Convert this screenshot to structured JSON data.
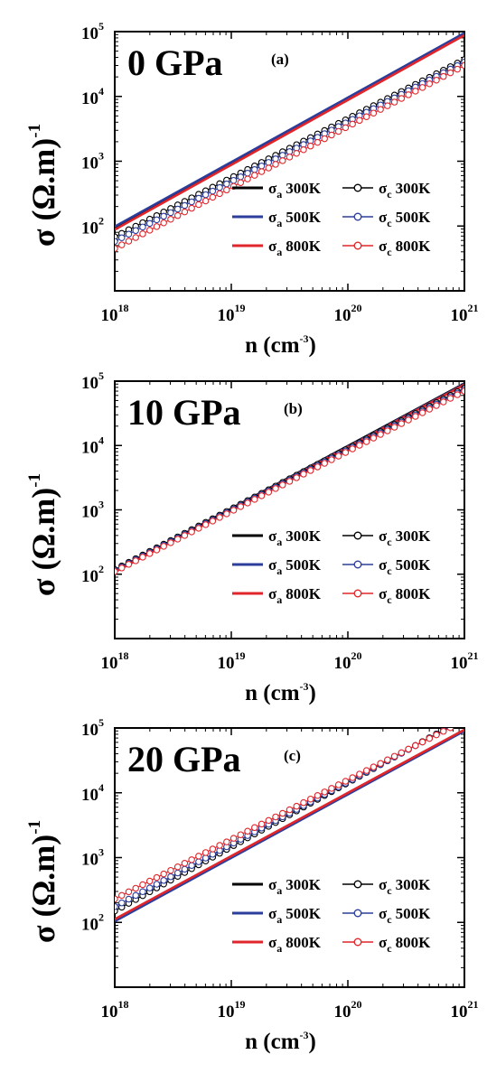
{
  "chart_data": [
    {
      "type": "line",
      "panel_label": "0 GPa",
      "panel_tag": "(a)",
      "xlabel": "n (cm-3)",
      "ylabel": "σ (Ω.m)-1",
      "xscale": "log",
      "yscale": "log",
      "xlim": [
        1e+18,
        1e+21
      ],
      "ylim": [
        10,
        100000
      ],
      "x_ticks": [
        {
          "base": "10",
          "exp": "18"
        },
        {
          "base": "10",
          "exp": "19"
        },
        {
          "base": "10",
          "exp": "20"
        },
        {
          "base": "10",
          "exp": "21"
        }
      ],
      "y_ticks": [
        {
          "base": "10",
          "exp": "2"
        },
        {
          "base": "10",
          "exp": "3"
        },
        {
          "base": "10",
          "exp": "4"
        },
        {
          "base": "10",
          "exp": "5"
        }
      ],
      "legend_position": "lower-right",
      "series": [
        {
          "name": "σa 300K",
          "sym": "σ",
          "sub": "a",
          "temp": "300K",
          "color": "#000000",
          "marker": "none",
          "x": [
            1e+18,
            1e+21
          ],
          "y": [
            92,
            92000
          ]
        },
        {
          "name": "σa 500K",
          "sym": "σ",
          "sub": "a",
          "temp": "500K",
          "color": "#2c3e9c",
          "marker": "none",
          "x": [
            1e+18,
            1e+21
          ],
          "y": [
            98,
            95000
          ]
        },
        {
          "name": "σa 800K",
          "sym": "σ",
          "sub": "a",
          "temp": "800K",
          "color": "#e0262b",
          "marker": "none",
          "x": [
            1e+18,
            1e+21
          ],
          "y": [
            88,
            88000
          ]
        },
        {
          "name": "σc 300K",
          "sym": "σ",
          "sub": "c",
          "temp": "300K",
          "color": "#000000",
          "marker": "circle",
          "x": [
            1e+18,
            1e+21
          ],
          "y": [
            68,
            37000
          ]
        },
        {
          "name": "σc 500K",
          "sym": "σ",
          "sub": "c",
          "temp": "500K",
          "color": "#2c3e9c",
          "marker": "circle",
          "x": [
            1e+18,
            1e+21
          ],
          "y": [
            58,
            34000
          ]
        },
        {
          "name": "σc 800K",
          "sym": "σ",
          "sub": "c",
          "temp": "800K",
          "color": "#e0262b",
          "marker": "circle",
          "x": [
            1e+18,
            1e+21
          ],
          "y": [
            45,
            30000
          ]
        }
      ]
    },
    {
      "type": "line",
      "panel_label": "10 GPa",
      "panel_tag": "(b)",
      "xlabel": "n (cm-3)",
      "ylabel": "σ (Ω.m)-1",
      "xscale": "log",
      "yscale": "log",
      "xlim": [
        1e+18,
        1e+21
      ],
      "ylim": [
        10,
        100000
      ],
      "x_ticks": [
        {
          "base": "10",
          "exp": "18"
        },
        {
          "base": "10",
          "exp": "19"
        },
        {
          "base": "10",
          "exp": "20"
        },
        {
          "base": "10",
          "exp": "21"
        }
      ],
      "y_ticks": [
        {
          "base": "10",
          "exp": "2"
        },
        {
          "base": "10",
          "exp": "3"
        },
        {
          "base": "10",
          "exp": "4"
        },
        {
          "base": "10",
          "exp": "5"
        }
      ],
      "legend_position": "lower-right",
      "series": [
        {
          "name": "σa 300K",
          "sym": "σ",
          "sub": "a",
          "temp": "300K",
          "color": "#000000",
          "marker": "none",
          "x": [
            1e+18,
            1e+21
          ],
          "y": [
            112,
            92000
          ]
        },
        {
          "name": "σa 500K",
          "sym": "σ",
          "sub": "a",
          "temp": "500K",
          "color": "#2c3e9c",
          "marker": "none",
          "x": [
            1e+18,
            1e+21
          ],
          "y": [
            110,
            90000
          ]
        },
        {
          "name": "σa 800K",
          "sym": "σ",
          "sub": "a",
          "temp": "800K",
          "color": "#e0262b",
          "marker": "none",
          "x": [
            1e+18,
            1e+21
          ],
          "y": [
            108,
            88000
          ]
        },
        {
          "name": "σc 300K",
          "sym": "σ",
          "sub": "c",
          "temp": "300K",
          "color": "#000000",
          "marker": "circle",
          "x": [
            1e+18,
            1e+21
          ],
          "y": [
            118,
            78000
          ]
        },
        {
          "name": "σc 500K",
          "sym": "σ",
          "sub": "c",
          "temp": "500K",
          "color": "#2c3e9c",
          "marker": "circle",
          "x": [
            1e+18,
            1e+21
          ],
          "y": [
            114,
            74000
          ]
        },
        {
          "name": "σc 800K",
          "sym": "σ",
          "sub": "c",
          "temp": "800K",
          "color": "#e0262b",
          "marker": "circle",
          "x": [
            1e+18,
            1e+21
          ],
          "y": [
            110,
            70000
          ]
        }
      ]
    },
    {
      "type": "line",
      "panel_label": "20 GPa",
      "panel_tag": "(c)",
      "xlabel": "n (cm-3)",
      "ylabel": "σ (Ω.m)-1",
      "xscale": "log",
      "yscale": "log",
      "xlim": [
        1e+18,
        1e+21
      ],
      "ylim": [
        10,
        100000
      ],
      "x_ticks": [
        {
          "base": "10",
          "exp": "18"
        },
        {
          "base": "10",
          "exp": "19"
        },
        {
          "base": "10",
          "exp": "20"
        },
        {
          "base": "10",
          "exp": "21"
        }
      ],
      "y_ticks": [
        {
          "base": "10",
          "exp": "2"
        },
        {
          "base": "10",
          "exp": "3"
        },
        {
          "base": "10",
          "exp": "4"
        },
        {
          "base": "10",
          "exp": "5"
        }
      ],
      "legend_position": "lower-right",
      "series": [
        {
          "name": "σa 300K",
          "sym": "σ",
          "sub": "a",
          "temp": "300K",
          "color": "#000000",
          "marker": "none",
          "x": [
            1e+18,
            1e+21
          ],
          "y": [
            108,
            92000
          ]
        },
        {
          "name": "σa 500K",
          "sym": "σ",
          "sub": "a",
          "temp": "500K",
          "color": "#2c3e9c",
          "marker": "none",
          "x": [
            1e+18,
            1e+21
          ],
          "y": [
            104,
            90000
          ]
        },
        {
          "name": "σa 800K",
          "sym": "σ",
          "sub": "a",
          "temp": "800K",
          "color": "#e0262b",
          "marker": "none",
          "x": [
            1e+18,
            1e+21
          ],
          "y": [
            112,
            94000
          ]
        },
        {
          "name": "σc 300K",
          "sym": "σ",
          "sub": "c",
          "temp": "300K",
          "color": "#000000",
          "marker": "circle",
          "x": [
            1e+18,
            1e+21
          ],
          "y": [
            150,
            140000
          ]
        },
        {
          "name": "σc 500K",
          "sym": "σ",
          "sub": "c",
          "temp": "500K",
          "color": "#2c3e9c",
          "marker": "circle",
          "x": [
            1e+18,
            1e+21
          ],
          "y": [
            175,
            135000
          ]
        },
        {
          "name": "σc 800K",
          "sym": "σ",
          "sub": "c",
          "temp": "800K",
          "color": "#e0262b",
          "marker": "circle",
          "x": [
            1e+18,
            1e+21
          ],
          "y": [
            230,
            130000
          ]
        }
      ]
    }
  ]
}
